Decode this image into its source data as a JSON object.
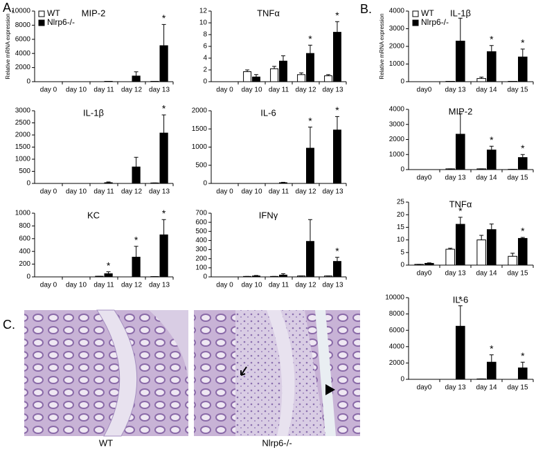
{
  "panel_labels": [
    "A.",
    "B.",
    "C."
  ],
  "images": [
    {
      "label": "WT"
    },
    {
      "label": "Nlrp6-/-"
    }
  ],
  "chart_data": [
    {
      "type": "bar",
      "title": "MIP-2",
      "y_label": "Relative mRNA expression",
      "legend": "upper left",
      "categories": [
        "day 0",
        "day 10",
        "day 11",
        "day 12",
        "day 13"
      ],
      "ylim": [
        0,
        10000
      ],
      "yticks": [
        0,
        2000,
        4000,
        6000,
        8000,
        10000
      ],
      "series": [
        {
          "name": "WT",
          "color": "#ffffff",
          "values": [
            0,
            0,
            0,
            0,
            50
          ],
          "errors": [
            0,
            0,
            0,
            0,
            0
          ]
        },
        {
          "name": "Nlrp6-/-",
          "color": "#000000",
          "values": [
            0,
            0,
            50,
            800,
            5100
          ],
          "errors": [
            0,
            0,
            0,
            600,
            3000
          ],
          "markers": [
            null,
            null,
            null,
            null,
            "*"
          ]
        }
      ]
    },
    {
      "type": "bar",
      "title": "TNFα",
      "categories": [
        "day 0",
        "day 10",
        "day 11",
        "day 12",
        "day 13"
      ],
      "ylim": [
        0,
        12
      ],
      "yticks": [
        0,
        2,
        4,
        6,
        8,
        10,
        12
      ],
      "series": [
        {
          "name": "WT",
          "color": "#ffffff",
          "values": [
            0,
            1.7,
            2.2,
            1.2,
            1.0
          ],
          "errors": [
            0,
            0.3,
            0.4,
            0.3,
            0.2
          ]
        },
        {
          "name": "Nlrp6-/-",
          "color": "#000000",
          "values": [
            0,
            0.8,
            3.5,
            4.8,
            8.4
          ],
          "errors": [
            0,
            0.4,
            0.9,
            1.4,
            1.8
          ],
          "markers": [
            null,
            null,
            null,
            "*",
            "*"
          ]
        }
      ]
    },
    {
      "type": "bar",
      "title": "IL-1β",
      "categories": [
        "day 0",
        "day 10",
        "day 11",
        "day 12",
        "day 13"
      ],
      "ylim": [
        0,
        3000
      ],
      "yticks": [
        0,
        500,
        1000,
        1500,
        2000,
        2500,
        3000
      ],
      "series": [
        {
          "name": "WT",
          "color": "#ffffff",
          "values": [
            0,
            0,
            0,
            0,
            20
          ],
          "errors": [
            0,
            0,
            0,
            0,
            0
          ]
        },
        {
          "name": "Nlrp6-/-",
          "color": "#000000",
          "values": [
            0,
            0,
            30,
            680,
            2080
          ],
          "errors": [
            0,
            0,
            30,
            400,
            750
          ],
          "markers": [
            null,
            null,
            null,
            null,
            "*"
          ]
        }
      ]
    },
    {
      "type": "bar",
      "title": "IL-6",
      "categories": [
        "day 0",
        "day 10",
        "day 11",
        "day 12",
        "day 13"
      ],
      "ylim": [
        0,
        2000
      ],
      "yticks": [
        0,
        500,
        1000,
        1500,
        2000
      ],
      "series": [
        {
          "name": "WT",
          "color": "#ffffff",
          "values": [
            0,
            0,
            0,
            0,
            0
          ],
          "errors": [
            0,
            0,
            0,
            0,
            0
          ]
        },
        {
          "name": "Nlrp6-/-",
          "color": "#000000",
          "values": [
            0,
            0,
            20,
            970,
            1470
          ],
          "errors": [
            0,
            0,
            10,
            580,
            370
          ],
          "markers": [
            null,
            null,
            null,
            "*",
            "*"
          ]
        }
      ]
    },
    {
      "type": "bar",
      "title": "KC",
      "categories": [
        "day 0",
        "day 10",
        "day 11",
        "day 12",
        "day 13"
      ],
      "ylim": [
        0,
        1000
      ],
      "yticks": [
        0,
        200,
        400,
        600,
        800,
        1000
      ],
      "series": [
        {
          "name": "WT",
          "color": "#ffffff",
          "values": [
            0,
            0,
            10,
            0,
            5
          ],
          "errors": [
            0,
            0,
            0,
            0,
            0
          ]
        },
        {
          "name": "Nlrp6-/-",
          "color": "#000000",
          "values": [
            0,
            0,
            50,
            310,
            660
          ],
          "errors": [
            0,
            0,
            30,
            170,
            240
          ],
          "markers": [
            null,
            null,
            "*",
            "*",
            "*"
          ]
        }
      ]
    },
    {
      "type": "bar",
      "title": "IFNγ",
      "categories": [
        "day 0",
        "day 10",
        "day 11",
        "day 12",
        "day 13"
      ],
      "ylim": [
        0,
        700
      ],
      "yticks": [
        0,
        100,
        200,
        300,
        400,
        500,
        600,
        700
      ],
      "series": [
        {
          "name": "WT",
          "color": "#ffffff",
          "values": [
            0,
            5,
            5,
            10,
            10
          ],
          "errors": [
            0,
            0,
            0,
            0,
            0
          ]
        },
        {
          "name": "Nlrp6-/-",
          "color": "#000000",
          "values": [
            0,
            10,
            20,
            390,
            170
          ],
          "errors": [
            0,
            5,
            15,
            240,
            45
          ],
          "markers": [
            null,
            null,
            null,
            null,
            "*"
          ]
        }
      ]
    },
    {
      "type": "bar",
      "title": "IL-1β",
      "y_label": "Relative mRNA expression",
      "legend": "upper left",
      "categories": [
        "day0",
        "day 13",
        "day 14",
        "day 15"
      ],
      "ylim": [
        0,
        4000
      ],
      "yticks": [
        0,
        1000,
        2000,
        3000,
        4000
      ],
      "series": [
        {
          "name": "WT",
          "color": "#ffffff",
          "values": [
            0,
            20,
            180,
            20
          ],
          "errors": [
            0,
            0,
            80,
            0
          ]
        },
        {
          "name": "Nlrp6-/-",
          "color": "#000000",
          "values": [
            0,
            2300,
            1700,
            1400
          ],
          "errors": [
            0,
            1300,
            350,
            450
          ],
          "markers": [
            null,
            null,
            "*",
            "*"
          ]
        }
      ]
    },
    {
      "type": "bar",
      "title": "MIP-2",
      "categories": [
        "day0",
        "day 13",
        "day 14",
        "day 15"
      ],
      "ylim": [
        0,
        4000
      ],
      "yticks": [
        0,
        1000,
        2000,
        3000,
        4000
      ],
      "series": [
        {
          "name": "WT",
          "color": "#ffffff",
          "values": [
            0,
            50,
            50,
            20
          ],
          "errors": [
            0,
            0,
            0,
            0
          ]
        },
        {
          "name": "Nlrp6-/-",
          "color": "#000000",
          "values": [
            0,
            2350,
            1300,
            800
          ],
          "errors": [
            0,
            1350,
            250,
            200
          ],
          "markers": [
            null,
            null,
            "*",
            "*"
          ]
        }
      ]
    },
    {
      "type": "bar",
      "title": "TNFα",
      "categories": [
        "day0",
        "day 13",
        "day 14",
        "day 15"
      ],
      "ylim": [
        0,
        25
      ],
      "yticks": [
        0,
        5,
        10,
        15,
        20,
        25
      ],
      "series": [
        {
          "name": "WT",
          "color": "#ffffff",
          "values": [
            0.3,
            6.3,
            10,
            3.5
          ],
          "errors": [
            0,
            0.4,
            1.8,
            1.2
          ]
        },
        {
          "name": "Nlrp6-/-",
          "color": "#000000",
          "values": [
            0.7,
            16.2,
            14.1,
            10.6
          ],
          "errors": [
            0.2,
            2.8,
            2.2,
            0.4
          ],
          "markers": [
            null,
            "*",
            null,
            "*"
          ]
        }
      ]
    },
    {
      "type": "bar",
      "title": "IL-6",
      "categories": [
        "day0",
        "day 13",
        "day 14",
        "day 15"
      ],
      "ylim": [
        0,
        10000
      ],
      "yticks": [
        0,
        2000,
        4000,
        6000,
        8000,
        10000
      ],
      "series": [
        {
          "name": "WT",
          "color": "#ffffff",
          "values": [
            0,
            0,
            50,
            0
          ],
          "errors": [
            0,
            0,
            0,
            0
          ]
        },
        {
          "name": "Nlrp6-/-",
          "color": "#000000",
          "values": [
            0,
            6500,
            2100,
            1400
          ],
          "errors": [
            0,
            2500,
            900,
            700
          ],
          "markers": [
            null,
            "*",
            "*",
            "*"
          ]
        }
      ]
    }
  ]
}
